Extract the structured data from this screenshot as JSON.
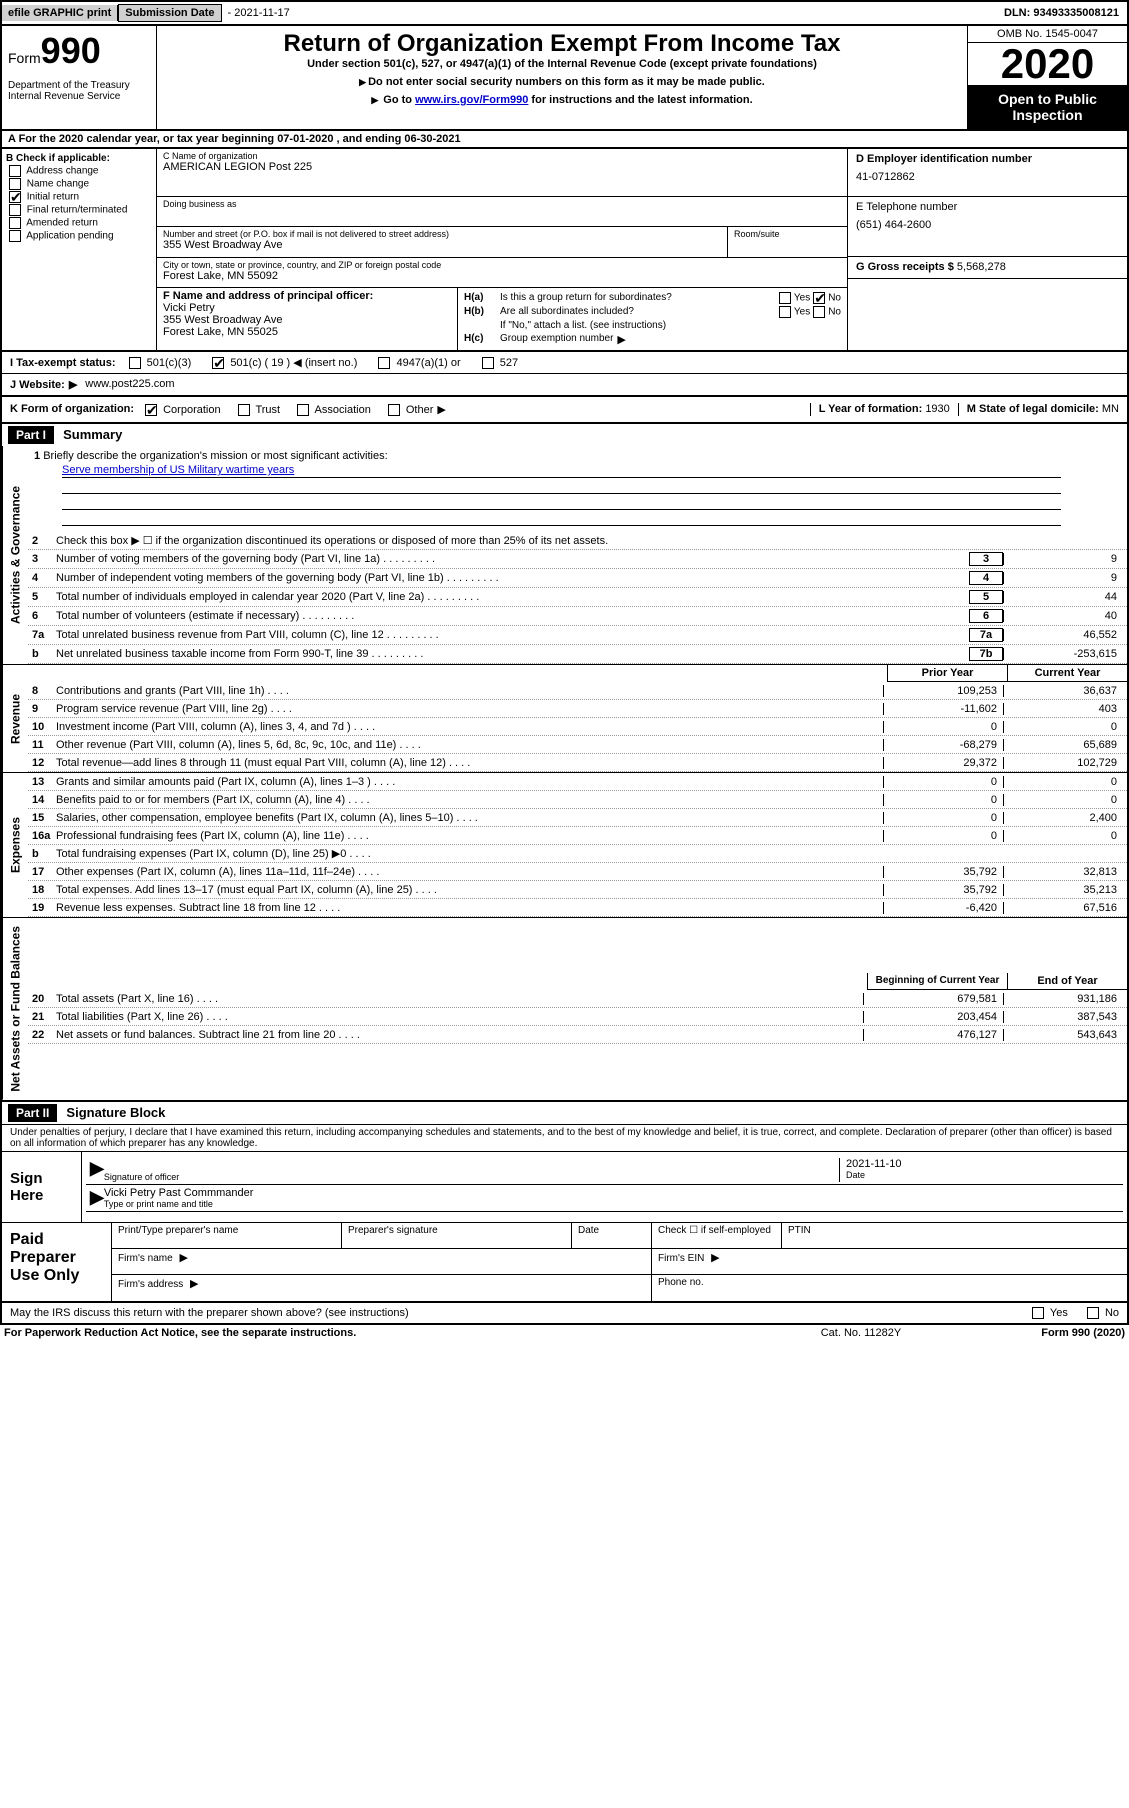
{
  "topbar": {
    "efile": "efile GRAPHIC print",
    "subdate_label": "Submission Date",
    "subdate": "- 2021-11-17",
    "dln": "DLN: 93493335008121"
  },
  "header": {
    "form_prefix": "Form",
    "form_num": "990",
    "dept": "Department of the Treasury\nInternal Revenue Service",
    "title": "Return of Organization Exempt From Income Tax",
    "subtitle": "Under section 501(c), 527, or 4947(a)(1) of the Internal Revenue Code (except private foundations)",
    "note1": "Do not enter social security numbers on this form as it may be made public.",
    "note2_prefix": "Go to ",
    "note2_link": "www.irs.gov/Form990",
    "note2_suffix": " for instructions and the latest information.",
    "omb": "OMB No. 1545-0047",
    "year": "2020",
    "open": "Open to Public Inspection"
  },
  "section_a": "A For the 2020 calendar year, or tax year beginning 07-01-2020     , and ending 06-30-2021",
  "box_b": {
    "label": "B Check if applicable:",
    "opts": [
      "Address change",
      "Name change",
      "Initial return",
      "Final return/terminated",
      "Amended return",
      "Application pending"
    ],
    "checked_idx": 2
  },
  "box_c": {
    "name_label": "C Name of organization",
    "name": "AMERICAN LEGION Post 225",
    "dba_label": "Doing business as",
    "addr_label": "Number and street (or P.O. box if mail is not delivered to street address)",
    "addr": "355 West Broadway Ave",
    "room_label": "Room/suite",
    "city_label": "City or town, state or province, country, and ZIP or foreign postal code",
    "city": "Forest Lake, MN  55092",
    "officer_label": "F Name and address of principal officer:",
    "officer_name": "Vicki Petry",
    "officer_addr1": "355 West Broadway Ave",
    "officer_addr2": "Forest Lake, MN  55025"
  },
  "box_d": {
    "ein_label": "D Employer identification number",
    "ein": "41-0712862",
    "phone_label": "E Telephone number",
    "phone": "(651) 464-2600",
    "gross_label": "G Gross receipts $",
    "gross": "5,568,278"
  },
  "box_h": {
    "ha_label": "H(a)",
    "ha_text": "Is this a group return for subordinates?",
    "ha_no_checked": true,
    "hb_label": "H(b)",
    "hb_text": "Are all subordinates included?",
    "hb_note": "If \"No,\" attach a list. (see instructions)",
    "hc_label": "H(c)",
    "hc_text": "Group exemption number"
  },
  "status": {
    "label": "I    Tax-exempt status:",
    "opts": {
      "501c3": "501(c)(3)",
      "501c": "501(c) ( 19 )",
      "insert": "(insert no.)",
      "4947": "4947(a)(1) or",
      "527": "527"
    },
    "checked": "501c"
  },
  "website": {
    "label": "J   Website:",
    "value": "www.post225.com"
  },
  "form_org": {
    "label": "K Form of organization:",
    "opts": [
      "Corporation",
      "Trust",
      "Association",
      "Other"
    ],
    "checked_idx": 0,
    "year_label": "L Year of formation:",
    "year": "1930",
    "state_label": "M State of legal domicile:",
    "state": "MN"
  },
  "part1": {
    "hdr": "Part I",
    "title": "Summary",
    "mission_label": "Briefly describe the organization's mission or most significant activities:",
    "mission": "Serve membership of US Military wartime years",
    "line2": "Check this box ▶ ☐  if the organization discontinued its operations or disposed of more than 25% of its net assets.",
    "lines_gov": [
      {
        "n": "3",
        "t": "Number of voting members of the governing body (Part VI, line 1a)",
        "box": "3",
        "v": "9"
      },
      {
        "n": "4",
        "t": "Number of independent voting members of the governing body (Part VI, line 1b)",
        "box": "4",
        "v": "9"
      },
      {
        "n": "5",
        "t": "Total number of individuals employed in calendar year 2020 (Part V, line 2a)",
        "box": "5",
        "v": "44"
      },
      {
        "n": "6",
        "t": "Total number of volunteers (estimate if necessary)",
        "box": "6",
        "v": "40"
      },
      {
        "n": "7a",
        "t": "Total unrelated business revenue from Part VIII, column (C), line 12",
        "box": "7a",
        "v": "46,552"
      },
      {
        "n": "b",
        "t": "Net unrelated business taxable income from Form 990-T, line 39",
        "box": "7b",
        "v": "-253,615"
      }
    ],
    "col_hdr_prior": "Prior Year",
    "col_hdr_current": "Current Year",
    "lines_rev": [
      {
        "n": "8",
        "t": "Contributions and grants (Part VIII, line 1h)",
        "p": "109,253",
        "c": "36,637"
      },
      {
        "n": "9",
        "t": "Program service revenue (Part VIII, line 2g)",
        "p": "-11,602",
        "c": "403"
      },
      {
        "n": "10",
        "t": "Investment income (Part VIII, column (A), lines 3, 4, and 7d )",
        "p": "0",
        "c": "0"
      },
      {
        "n": "11",
        "t": "Other revenue (Part VIII, column (A), lines 5, 6d, 8c, 9c, 10c, and 11e)",
        "p": "-68,279",
        "c": "65,689"
      },
      {
        "n": "12",
        "t": "Total revenue—add lines 8 through 11 (must equal Part VIII, column (A), line 12)",
        "p": "29,372",
        "c": "102,729"
      }
    ],
    "lines_exp": [
      {
        "n": "13",
        "t": "Grants and similar amounts paid (Part IX, column (A), lines 1–3 )",
        "p": "0",
        "c": "0"
      },
      {
        "n": "14",
        "t": "Benefits paid to or for members (Part IX, column (A), line 4)",
        "p": "0",
        "c": "0"
      },
      {
        "n": "15",
        "t": "Salaries, other compensation, employee benefits (Part IX, column (A), lines 5–10)",
        "p": "0",
        "c": "2,400"
      },
      {
        "n": "16a",
        "t": "Professional fundraising fees (Part IX, column (A), line 11e)",
        "p": "0",
        "c": "0"
      },
      {
        "n": "b",
        "t": "Total fundraising expenses (Part IX, column (D), line 25) ▶0",
        "p": "",
        "c": "",
        "grey": true
      },
      {
        "n": "17",
        "t": "Other expenses (Part IX, column (A), lines 11a–11d, 11f–24e)",
        "p": "35,792",
        "c": "32,813"
      },
      {
        "n": "18",
        "t": "Total expenses. Add lines 13–17 (must equal Part IX, column (A), line 25)",
        "p": "35,792",
        "c": "35,213"
      },
      {
        "n": "19",
        "t": "Revenue less expenses. Subtract line 18 from line 12",
        "p": "-6,420",
        "c": "67,516"
      }
    ],
    "col_hdr_begin": "Beginning of Current Year",
    "col_hdr_end": "End of Year",
    "lines_net": [
      {
        "n": "20",
        "t": "Total assets (Part X, line 16)",
        "p": "679,581",
        "c": "931,186"
      },
      {
        "n": "21",
        "t": "Total liabilities (Part X, line 26)",
        "p": "203,454",
        "c": "387,543"
      },
      {
        "n": "22",
        "t": "Net assets or fund balances. Subtract line 21 from line 20",
        "p": "476,127",
        "c": "543,643"
      }
    ],
    "vtabs": {
      "gov": "Activities & Governance",
      "rev": "Revenue",
      "exp": "Expenses",
      "net": "Net Assets or Fund Balances"
    }
  },
  "part2": {
    "hdr": "Part II",
    "title": "Signature Block",
    "decl": "Under penalties of perjury, I declare that I have examined this return, including accompanying schedules and statements, and to the best of my knowledge and belief, it is true, correct, and complete. Declaration of preparer (other than officer) is based on all information of which preparer has any knowledge.",
    "sign_here": "Sign Here",
    "sig_officer": "Signature of officer",
    "sig_date": "2021-11-10",
    "date_label": "Date",
    "name_title": "Vicki Petry  Past Commmander",
    "type_label": "Type or print name and title",
    "paid_prep": "Paid Preparer Use Only",
    "prep_name": "Print/Type preparer's name",
    "prep_sig": "Preparer's signature",
    "prep_date": "Date",
    "prep_check": "Check ☐ if self-employed",
    "ptin": "PTIN",
    "firm_name": "Firm's name",
    "firm_ein": "Firm's EIN",
    "firm_addr": "Firm's address",
    "phone": "Phone no.",
    "discuss": "May the IRS discuss this return with the preparer shown above? (see instructions)",
    "yes": "Yes",
    "no": "No"
  },
  "footer": {
    "paperwork": "For Paperwork Reduction Act Notice, see the separate instructions.",
    "cat": "Cat. No. 11282Y",
    "form": "Form 990 (2020)"
  }
}
